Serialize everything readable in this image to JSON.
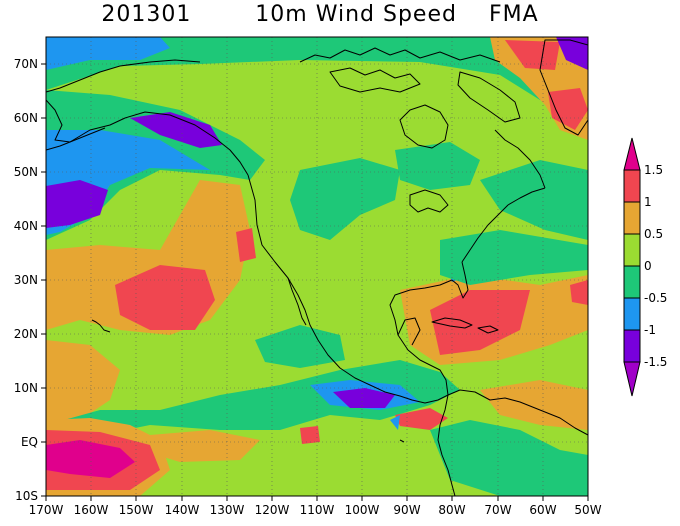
{
  "map": {
    "title_date": "201301",
    "title_variable": "10m Wind Speed",
    "title_season": "FMA",
    "lon_labels": [
      "170W",
      "160W",
      "150W",
      "140W",
      "130W",
      "120W",
      "110W",
      "100W",
      "90W",
      "80W",
      "70W",
      "60W",
      "50W"
    ],
    "lat_labels": [
      "70N",
      "60N",
      "50N",
      "40N",
      "30N",
      "20N",
      "10N",
      "EQ",
      "10S"
    ],
    "colorbar": {
      "labels": [
        "1.5",
        "1",
        "0.5",
        "0",
        "-0.5",
        "-1",
        "-1.5"
      ],
      "colors": {
        "gt_1_5": "#e0008c",
        "1_to_1_5": "#f04650",
        "0_5_to_1": "#e6a633",
        "0_to_0_5": "#9bdc32",
        "m0_5_to_0": "#1ec878",
        "m1_to_m0_5": "#1e96f0",
        "m1_5_to_m1": "#7800dc",
        "lt_m1_5": "#a000c8"
      }
    }
  }
}
